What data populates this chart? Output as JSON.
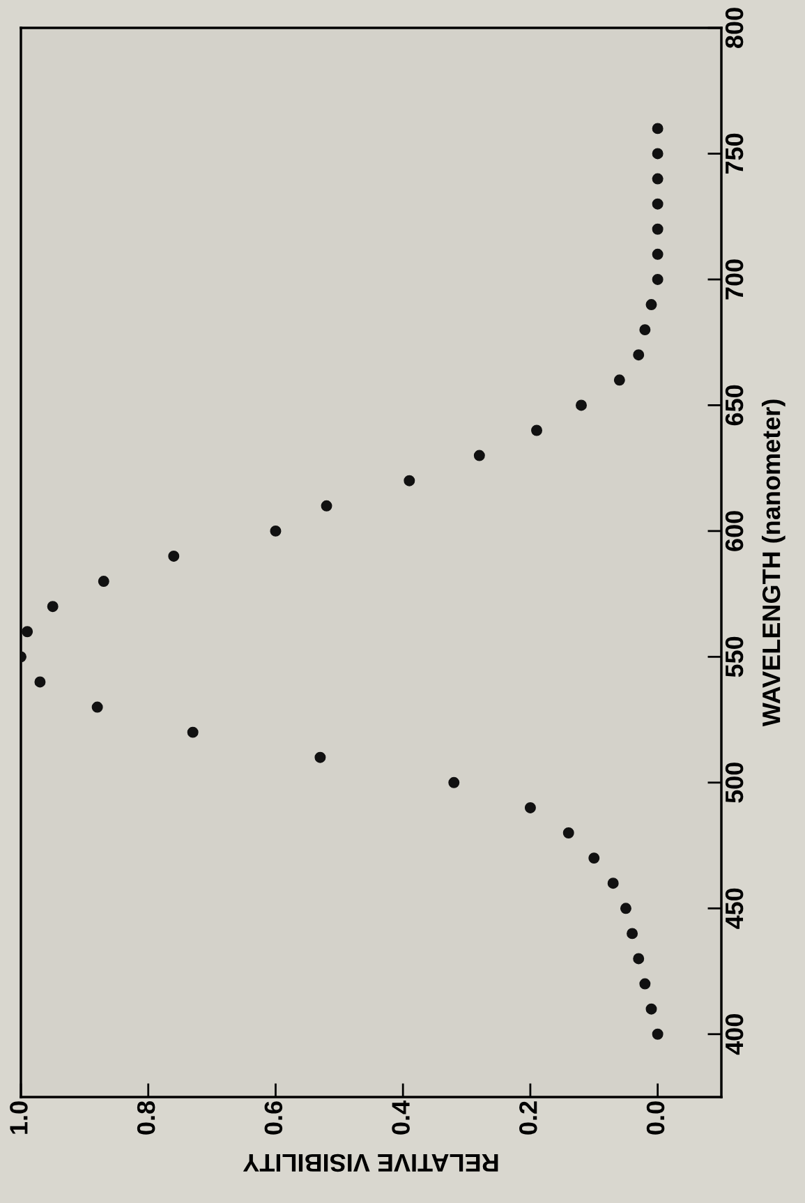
{
  "chart_data": {
    "type": "scatter",
    "xlabel": "RELATIVE VISIBILITY",
    "ylabel": "WAVELENGTH (nanometer)",
    "x": [
      0.0,
      0.01,
      0.02,
      0.03,
      0.04,
      0.05,
      0.07,
      0.1,
      0.14,
      0.2,
      0.32,
      0.53,
      0.73,
      0.88,
      0.97,
      1.0,
      0.99,
      0.95,
      0.87,
      0.76,
      0.6,
      0.52,
      0.39,
      0.28,
      0.19,
      0.12,
      0.06,
      0.03,
      0.02,
      0.01,
      0.0,
      0.0,
      0.0,
      0.0,
      0.0,
      0.0,
      0.0
    ],
    "series": [
      {
        "color": "#111111",
        "values": [
          400,
          410,
          420,
          430,
          440,
          450,
          460,
          470,
          480,
          490,
          500,
          510,
          520,
          530,
          540,
          550,
          560,
          570,
          580,
          590,
          600,
          610,
          620,
          630,
          640,
          650,
          660,
          670,
          680,
          690,
          700,
          710,
          720,
          730,
          740,
          750,
          760
        ]
      }
    ],
    "marker": "circle",
    "ylim": [
      375,
      800
    ],
    "yticks": [
      400,
      450,
      500,
      550,
      600,
      650,
      700,
      750,
      800
    ],
    "xlim": [
      1.0,
      -0.1
    ],
    "xticks": [
      {
        "value": 1.0,
        "label": "1.0"
      },
      {
        "value": 0.8,
        "label": "0.8"
      },
      {
        "value": 0.6,
        "label": "0.6"
      },
      {
        "value": 0.4,
        "label": "0.4"
      },
      {
        "value": 0.2,
        "label": "0.2"
      },
      {
        "value": 0,
        "label": "0.0"
      }
    ]
  }
}
